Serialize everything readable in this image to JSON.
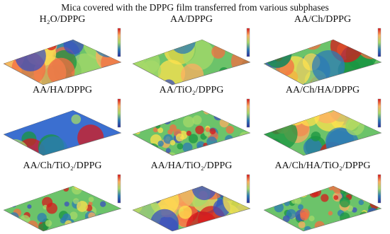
{
  "title": "Mica covered with the DPPG film transferred from various subphases",
  "panels": [
    {
      "label": "H₂O/DPPG"
    },
    {
      "label": "AA/DPPG"
    },
    {
      "label": "AA/Ch/DPPG"
    },
    {
      "label": "AA/HA/DPPG"
    },
    {
      "label": "AA/TiO₂/DPPG"
    },
    {
      "label": "AA/Ch/HA/DPPG"
    },
    {
      "label": "AA/Ch/TiO₂/DPPG"
    },
    {
      "label": "AA/HA/TiO₂/DPPG"
    },
    {
      "label": "AA/Ch/HA/TiO₂/DPPG"
    }
  ]
}
